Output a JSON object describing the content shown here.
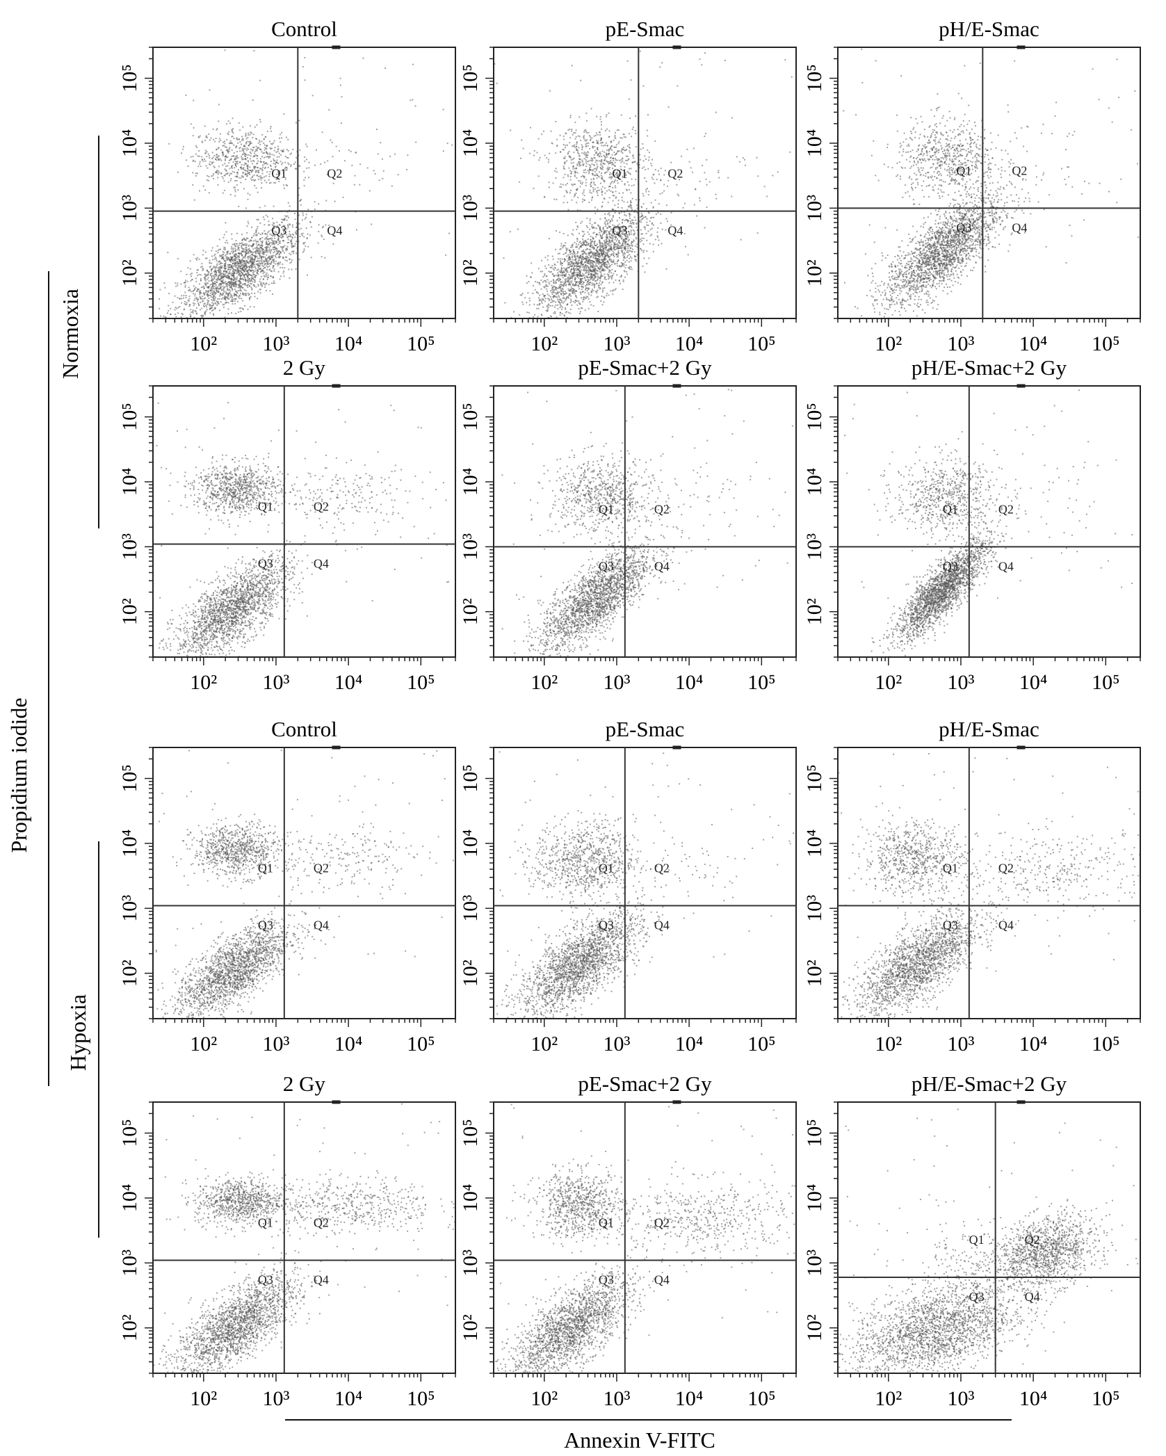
{
  "figure": {
    "y_label": "Propidium iodide",
    "x_label": "Annexin V-FITC",
    "group_labels": [
      "Normoxia",
      "Hypoxia"
    ]
  },
  "chart_data": [
    {
      "type": "scatter",
      "title": "Control",
      "group": "Normoxia",
      "x_scale": "log",
      "y_scale": "log",
      "xlim": [
        20,
        300000
      ],
      "ylim": [
        20,
        300000
      ],
      "x_ticks": [
        "10²",
        "10³",
        "10⁴",
        "10⁵"
      ],
      "y_ticks": [
        "10²",
        "10³",
        "10⁴",
        "10⁵"
      ],
      "gate": {
        "x": 2000,
        "y": 900
      },
      "quadrants": [
        "Q1",
        "Q2",
        "Q3",
        "Q4"
      ],
      "clusters": [
        {
          "cx": 300,
          "cy": 110,
          "sx": 0.42,
          "sy": 0.38,
          "rho": 0.72,
          "n": 2000
        },
        {
          "cx": 350,
          "cy": 6000,
          "sx": 0.35,
          "sy": 0.25,
          "rho": 0,
          "n": 650
        },
        {
          "cx": 10000,
          "cy": 5000,
          "sx": 0.5,
          "sy": 0.3,
          "rho": 0,
          "n": 50
        }
      ]
    },
    {
      "type": "scatter",
      "title": "pE-Smac",
      "group": "Normoxia",
      "x_scale": "log",
      "y_scale": "log",
      "xlim": [
        20,
        300000
      ],
      "ylim": [
        20,
        300000
      ],
      "x_ticks": [
        "10²",
        "10³",
        "10⁴",
        "10⁵"
      ],
      "y_ticks": [
        "10²",
        "10³",
        "10⁴",
        "10⁵"
      ],
      "gate": {
        "x": 2000,
        "y": 900
      },
      "quadrants": [
        "Q1",
        "Q2",
        "Q3",
        "Q4"
      ],
      "clusters": [
        {
          "cx": 450,
          "cy": 150,
          "sx": 0.4,
          "sy": 0.4,
          "rho": 0.72,
          "n": 2000
        },
        {
          "cx": 550,
          "cy": 5000,
          "sx": 0.35,
          "sy": 0.3,
          "rho": 0,
          "n": 700
        },
        {
          "cx": 8000,
          "cy": 4000,
          "sx": 0.5,
          "sy": 0.35,
          "rho": 0,
          "n": 50
        }
      ]
    },
    {
      "type": "scatter",
      "title": "pH/E-Smac",
      "group": "Normoxia",
      "x_scale": "log",
      "y_scale": "log",
      "xlim": [
        20,
        300000
      ],
      "ylim": [
        20,
        300000
      ],
      "x_ticks": [
        "10²",
        "10³",
        "10⁴",
        "10⁵"
      ],
      "y_ticks": [
        "10²",
        "10³",
        "10⁴",
        "10⁵"
      ],
      "gate": {
        "x": 2000,
        "y": 1000
      },
      "quadrants": [
        "Q1",
        "Q2",
        "Q3",
        "Q4"
      ],
      "clusters": [
        {
          "cx": 550,
          "cy": 220,
          "sx": 0.4,
          "sy": 0.42,
          "rho": 0.75,
          "n": 2100
        },
        {
          "cx": 650,
          "cy": 6000,
          "sx": 0.35,
          "sy": 0.3,
          "rho": 0,
          "n": 650
        },
        {
          "cx": 8000,
          "cy": 4000,
          "sx": 0.5,
          "sy": 0.35,
          "rho": 0,
          "n": 50
        }
      ]
    },
    {
      "type": "scatter",
      "title": "2 Gy",
      "group": "Normoxia",
      "x_scale": "log",
      "y_scale": "log",
      "xlim": [
        20,
        300000
      ],
      "ylim": [
        20,
        300000
      ],
      "x_ticks": [
        "10²",
        "10³",
        "10⁴",
        "10⁵"
      ],
      "y_ticks": [
        "10²",
        "10³",
        "10⁴",
        "10⁵"
      ],
      "gate": {
        "x": 1300,
        "y": 1100
      },
      "quadrants": [
        "Q1",
        "Q2",
        "Q3",
        "Q4"
      ],
      "clusters": [
        {
          "cx": 250,
          "cy": 110,
          "sx": 0.4,
          "sy": 0.38,
          "rho": 0.72,
          "n": 1900
        },
        {
          "cx": 280,
          "cy": 8000,
          "sx": 0.3,
          "sy": 0.2,
          "rho": 0,
          "n": 800
        },
        {
          "cx": 8000,
          "cy": 6000,
          "sx": 0.55,
          "sy": 0.25,
          "rho": 0,
          "n": 200
        }
      ]
    },
    {
      "type": "scatter",
      "title": "pE-Smac+2 Gy",
      "group": "Normoxia",
      "x_scale": "log",
      "y_scale": "log",
      "xlim": [
        20,
        300000
      ],
      "ylim": [
        20,
        300000
      ],
      "x_ticks": [
        "10²",
        "10³",
        "10⁴",
        "10⁵"
      ],
      "y_ticks": [
        "10²",
        "10³",
        "10⁴",
        "10⁵"
      ],
      "gate": {
        "x": 1300,
        "y": 1000
      },
      "quadrants": [
        "Q1",
        "Q2",
        "Q3",
        "Q4"
      ],
      "clusters": [
        {
          "cx": 500,
          "cy": 160,
          "sx": 0.38,
          "sy": 0.4,
          "rho": 0.75,
          "n": 2000
        },
        {
          "cx": 600,
          "cy": 6000,
          "sx": 0.35,
          "sy": 0.3,
          "rho": 0,
          "n": 700
        },
        {
          "cx": 8000,
          "cy": 5000,
          "sx": 0.55,
          "sy": 0.3,
          "rho": 0,
          "n": 80
        }
      ]
    },
    {
      "type": "scatter",
      "title": "pH/E-Smac+2 Gy",
      "group": "Normoxia",
      "x_scale": "log",
      "y_scale": "log",
      "xlim": [
        20,
        300000
      ],
      "ylim": [
        20,
        300000
      ],
      "x_ticks": [
        "10²",
        "10³",
        "10⁴",
        "10⁵"
      ],
      "y_ticks": [
        "10²",
        "10³",
        "10⁴",
        "10⁵"
      ],
      "gate": {
        "x": 1300,
        "y": 1000
      },
      "quadrants": [
        "Q1",
        "Q2",
        "Q3",
        "Q4"
      ],
      "clusters": [
        {
          "cx": 550,
          "cy": 220,
          "sx": 0.32,
          "sy": 0.38,
          "rho": 0.85,
          "n": 2100
        },
        {
          "cx": 600,
          "cy": 6000,
          "sx": 0.35,
          "sy": 0.3,
          "rho": 0,
          "n": 650
        },
        {
          "cx": 8000,
          "cy": 5000,
          "sx": 0.5,
          "sy": 0.3,
          "rho": 0,
          "n": 50
        }
      ]
    },
    {
      "type": "scatter",
      "title": "Control",
      "group": "Hypoxia",
      "x_scale": "log",
      "y_scale": "log",
      "xlim": [
        20,
        300000
      ],
      "ylim": [
        20,
        300000
      ],
      "x_ticks": [
        "10²",
        "10³",
        "10⁴",
        "10⁵"
      ],
      "y_ticks": [
        "10²",
        "10³",
        "10⁴",
        "10⁵"
      ],
      "gate": {
        "x": 1300,
        "y": 1100
      },
      "quadrants": [
        "Q1",
        "Q2",
        "Q3",
        "Q4"
      ],
      "clusters": [
        {
          "cx": 250,
          "cy": 110,
          "sx": 0.4,
          "sy": 0.38,
          "rho": 0.72,
          "n": 1900
        },
        {
          "cx": 280,
          "cy": 8000,
          "sx": 0.3,
          "sy": 0.2,
          "rho": 0,
          "n": 800
        },
        {
          "cx": 8000,
          "cy": 6000,
          "sx": 0.55,
          "sy": 0.25,
          "rho": 0,
          "n": 200
        }
      ]
    },
    {
      "type": "scatter",
      "title": "pE-Smac",
      "group": "Hypoxia",
      "x_scale": "log",
      "y_scale": "log",
      "xlim": [
        20,
        300000
      ],
      "ylim": [
        20,
        300000
      ],
      "x_ticks": [
        "10²",
        "10³",
        "10⁴",
        "10⁵"
      ],
      "y_ticks": [
        "10²",
        "10³",
        "10⁴",
        "10⁵"
      ],
      "gate": {
        "x": 1300,
        "y": 1100
      },
      "quadrants": [
        "Q1",
        "Q2",
        "Q3",
        "Q4"
      ],
      "clusters": [
        {
          "cx": 300,
          "cy": 140,
          "sx": 0.42,
          "sy": 0.4,
          "rho": 0.72,
          "n": 2000
        },
        {
          "cx": 350,
          "cy": 5500,
          "sx": 0.35,
          "sy": 0.3,
          "rho": 0,
          "n": 800
        },
        {
          "cx": 8000,
          "cy": 5000,
          "sx": 0.5,
          "sy": 0.3,
          "rho": 0,
          "n": 60
        }
      ]
    },
    {
      "type": "scatter",
      "title": "pH/E-Smac",
      "group": "Hypoxia",
      "x_scale": "log",
      "y_scale": "log",
      "xlim": [
        20,
        300000
      ],
      "ylim": [
        20,
        300000
      ],
      "x_ticks": [
        "10²",
        "10³",
        "10⁴",
        "10⁵"
      ],
      "y_ticks": [
        "10²",
        "10³",
        "10⁴",
        "10⁵"
      ],
      "gate": {
        "x": 1300,
        "y": 1100
      },
      "quadrants": [
        "Q1",
        "Q2",
        "Q3",
        "Q4"
      ],
      "clusters": [
        {
          "cx": 250,
          "cy": 140,
          "sx": 0.42,
          "sy": 0.4,
          "rho": 0.72,
          "n": 1900
        },
        {
          "cx": 220,
          "cy": 6000,
          "sx": 0.35,
          "sy": 0.28,
          "rho": 0,
          "n": 700
        },
        {
          "cx": 20000,
          "cy": 4000,
          "sx": 0.7,
          "sy": 0.3,
          "rho": 0,
          "n": 350
        }
      ]
    },
    {
      "type": "scatter",
      "title": "2 Gy",
      "group": "Hypoxia",
      "x_scale": "log",
      "y_scale": "log",
      "xlim": [
        20,
        300000
      ],
      "ylim": [
        20,
        300000
      ],
      "x_ticks": [
        "10²",
        "10³",
        "10⁴",
        "10⁵"
      ],
      "y_ticks": [
        "10²",
        "10³",
        "10⁴",
        "10⁵"
      ],
      "gate": {
        "x": 1300,
        "y": 1100
      },
      "quadrants": [
        "Q1",
        "Q2",
        "Q3",
        "Q4"
      ],
      "clusters": [
        {
          "cx": 280,
          "cy": 110,
          "sx": 0.42,
          "sy": 0.38,
          "rho": 0.72,
          "n": 1900
        },
        {
          "cx": 300,
          "cy": 9000,
          "sx": 0.3,
          "sy": 0.18,
          "rho": 0,
          "n": 800
        },
        {
          "cx": 10000,
          "cy": 8000,
          "sx": 0.6,
          "sy": 0.22,
          "rho": 0,
          "n": 500
        }
      ]
    },
    {
      "type": "scatter",
      "title": "pE-Smac+2 Gy",
      "group": "Hypoxia",
      "x_scale": "log",
      "y_scale": "log",
      "xlim": [
        20,
        300000
      ],
      "ylim": [
        20,
        300000
      ],
      "x_ticks": [
        "10²",
        "10³",
        "10⁴",
        "10⁵"
      ],
      "y_ticks": [
        "10²",
        "10³",
        "10⁴",
        "10⁵"
      ],
      "gate": {
        "x": 1300,
        "y": 1100
      },
      "quadrants": [
        "Q1",
        "Q2",
        "Q3",
        "Q4"
      ],
      "clusters": [
        {
          "cx": 230,
          "cy": 100,
          "sx": 0.42,
          "sy": 0.4,
          "rho": 0.72,
          "n": 1900
        },
        {
          "cx": 300,
          "cy": 8000,
          "sx": 0.3,
          "sy": 0.25,
          "rho": 0,
          "n": 750
        },
        {
          "cx": 15000,
          "cy": 5000,
          "sx": 0.65,
          "sy": 0.3,
          "rho": 0,
          "n": 500
        }
      ]
    },
    {
      "type": "scatter",
      "title": "pH/E-Smac+2 Gy",
      "group": "Hypoxia",
      "x_scale": "log",
      "y_scale": "log",
      "xlim": [
        20,
        300000
      ],
      "ylim": [
        20,
        300000
      ],
      "x_ticks": [
        "10²",
        "10³",
        "10⁴",
        "10⁵"
      ],
      "y_ticks": [
        "10²",
        "10³",
        "10⁴",
        "10⁵"
      ],
      "gate": {
        "x": 3000,
        "y": 600
      },
      "quadrants": [
        "Q1",
        "Q2",
        "Q3",
        "Q4"
      ],
      "clusters": [
        {
          "cx": 400,
          "cy": 90,
          "sx": 0.55,
          "sy": 0.35,
          "rho": 0.4,
          "n": 2000
        },
        {
          "cx": 15000,
          "cy": 1500,
          "sx": 0.35,
          "sy": 0.28,
          "rho": 0.3,
          "n": 1200
        },
        {
          "cx": 1500,
          "cy": 700,
          "sx": 0.5,
          "sy": 0.4,
          "rho": 0,
          "n": 300
        }
      ]
    }
  ]
}
